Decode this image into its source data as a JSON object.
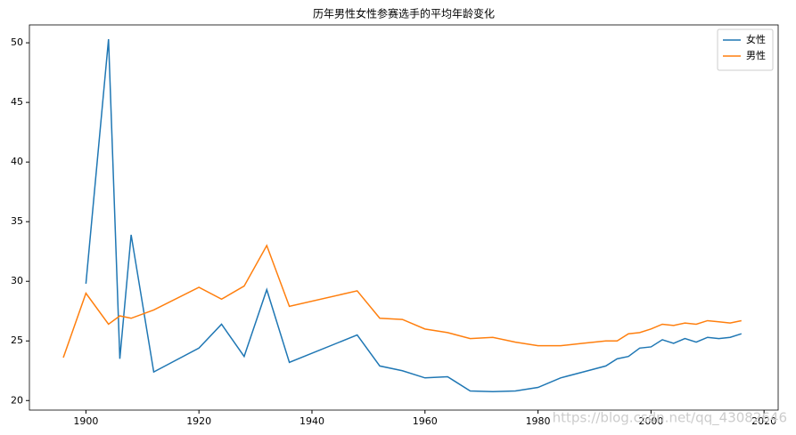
{
  "chart_data": {
    "type": "line",
    "title": "历年男性女性参赛选手的平均年龄变化",
    "x": [
      1896,
      1900,
      1904,
      1906,
      1908,
      1912,
      1920,
      1924,
      1928,
      1932,
      1936,
      1948,
      1952,
      1956,
      1960,
      1964,
      1968,
      1972,
      1976,
      1980,
      1984,
      1988,
      1992,
      1994,
      1996,
      1998,
      2000,
      2002,
      2004,
      2006,
      2008,
      2010,
      2012,
      2014,
      2016
    ],
    "series": [
      {
        "name": "女性",
        "color": "#1f77b4",
        "values": [
          null,
          29.8,
          50.3,
          23.5,
          33.9,
          22.4,
          24.4,
          26.4,
          23.7,
          29.3,
          23.2,
          25.5,
          22.9,
          22.5,
          21.9,
          22.0,
          20.8,
          20.75,
          20.8,
          21.1,
          21.9,
          22.4,
          22.9,
          23.5,
          23.7,
          24.4,
          24.5,
          25.1,
          24.8,
          25.2,
          24.9,
          25.3,
          25.2,
          25.3,
          25.6
        ]
      },
      {
        "name": "男性",
        "color": "#ff7f0e",
        "values": [
          23.6,
          29.0,
          26.4,
          27.1,
          26.9,
          27.6,
          29.5,
          28.5,
          29.6,
          33.0,
          27.9,
          29.2,
          26.9,
          26.8,
          26.0,
          25.7,
          25.2,
          25.3,
          24.9,
          24.6,
          24.6,
          24.8,
          25.0,
          25.0,
          25.6,
          25.7,
          26.0,
          26.4,
          26.3,
          26.5,
          26.4,
          26.7,
          26.6,
          26.5,
          26.7
        ]
      }
    ],
    "xlim": [
      1890,
      2022.5
    ],
    "xticks": [
      1900,
      1920,
      1940,
      1960,
      1980,
      2000,
      2020
    ],
    "ylim": [
      19.2,
      51.5
    ],
    "yticks": [
      20,
      25,
      30,
      35,
      40,
      45,
      50
    ],
    "legend": "upper right",
    "grid": false,
    "watermark": "https://blog.csdn.net/qq_43082646"
  }
}
